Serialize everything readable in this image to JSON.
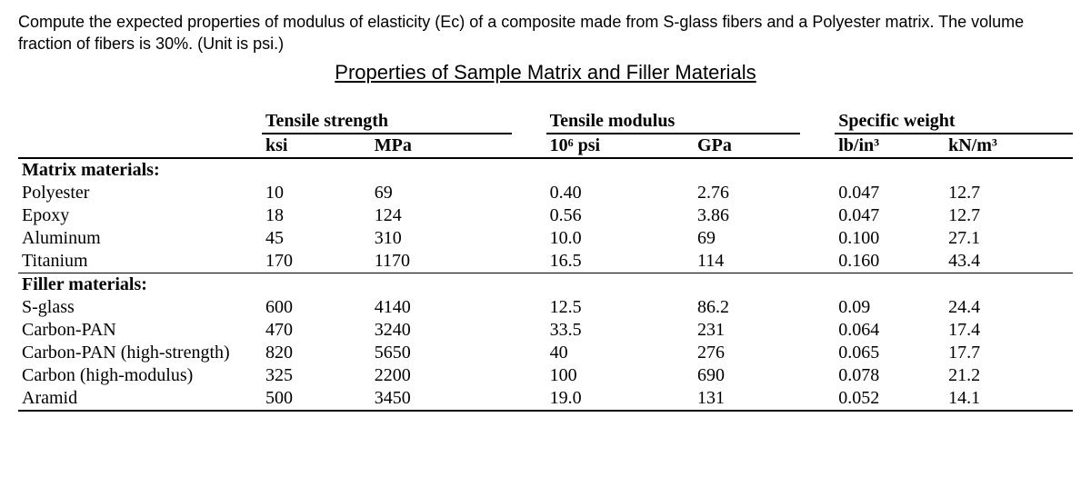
{
  "question": "Compute the expected properties of modulus of elasticity (Ec) of a composite made from S-glass fibers and a Polyester matrix. The volume fraction of fibers is 30%. (Unit is psi.)",
  "section_title": "Properties of Sample Matrix and Filler Materials",
  "headers": {
    "tensile_strength": "Tensile strength",
    "tensile_modulus": "Tensile modulus",
    "specific_weight": "Specific weight"
  },
  "units": {
    "ksi": "ksi",
    "mpa": "MPa",
    "e6psi": "10⁶ psi",
    "gpa": "GPa",
    "lbin3": "lb/in³",
    "knm3": "kN/m³"
  },
  "groups": {
    "matrix": "Matrix materials:",
    "filler": "Filler materials:"
  },
  "rows": {
    "polyester": {
      "name": "Polyester",
      "ksi": "10",
      "mpa": "69",
      "e6psi": "0.40",
      "gpa": "2.76",
      "lbin3": "0.047",
      "knm3": "12.7"
    },
    "epoxy": {
      "name": "Epoxy",
      "ksi": "18",
      "mpa": "124",
      "e6psi": "0.56",
      "gpa": "3.86",
      "lbin3": "0.047",
      "knm3": "12.7"
    },
    "aluminum": {
      "name": "Aluminum",
      "ksi": "45",
      "mpa": "310",
      "e6psi": "10.0",
      "gpa": "69",
      "lbin3": "0.100",
      "knm3": "27.1"
    },
    "titanium": {
      "name": "Titanium",
      "ksi": "170",
      "mpa": "1170",
      "e6psi": "16.5",
      "gpa": "114",
      "lbin3": "0.160",
      "knm3": "43.4"
    },
    "sglass": {
      "name": "S-glass",
      "ksi": "600",
      "mpa": "4140",
      "e6psi": "12.5",
      "gpa": "86.2",
      "lbin3": "0.09",
      "knm3": "24.4"
    },
    "carbonpan": {
      "name": "Carbon-PAN",
      "ksi": "470",
      "mpa": "3240",
      "e6psi": "33.5",
      "gpa": "231",
      "lbin3": "0.064",
      "knm3": "17.4"
    },
    "carbonpanhs": {
      "name": "Carbon-PAN (high-strength)",
      "ksi": "820",
      "mpa": "5650",
      "e6psi": "40",
      "gpa": "276",
      "lbin3": "0.065",
      "knm3": "17.7"
    },
    "carbonhm": {
      "name": "Carbon (high-modulus)",
      "ksi": "325",
      "mpa": "2200",
      "e6psi": "100",
      "gpa": "690",
      "lbin3": "0.078",
      "knm3": "21.2"
    },
    "aramid": {
      "name": "Aramid",
      "ksi": "500",
      "mpa": "3450",
      "e6psi": "19.0",
      "gpa": "131",
      "lbin3": "0.052",
      "knm3": "14.1"
    }
  }
}
